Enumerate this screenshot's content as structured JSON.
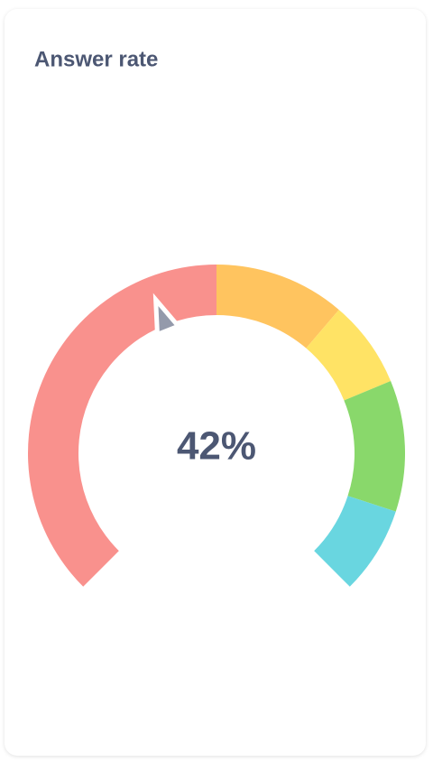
{
  "chart_data": {
    "type": "gauge",
    "title": "Answer rate",
    "value": 42,
    "value_label": "42%",
    "range": [
      0,
      100
    ],
    "segments": [
      {
        "min": 0,
        "max": 50,
        "color": "#f9918d"
      },
      {
        "min": 50,
        "max": 65,
        "color": "#ffc45f"
      },
      {
        "min": 65,
        "max": 75,
        "color": "#ffe365"
      },
      {
        "min": 75,
        "max": 90,
        "color": "#89d86b"
      },
      {
        "min": 90,
        "max": 100,
        "color": "#69d6e0"
      }
    ],
    "needle_color": "#949aab"
  }
}
